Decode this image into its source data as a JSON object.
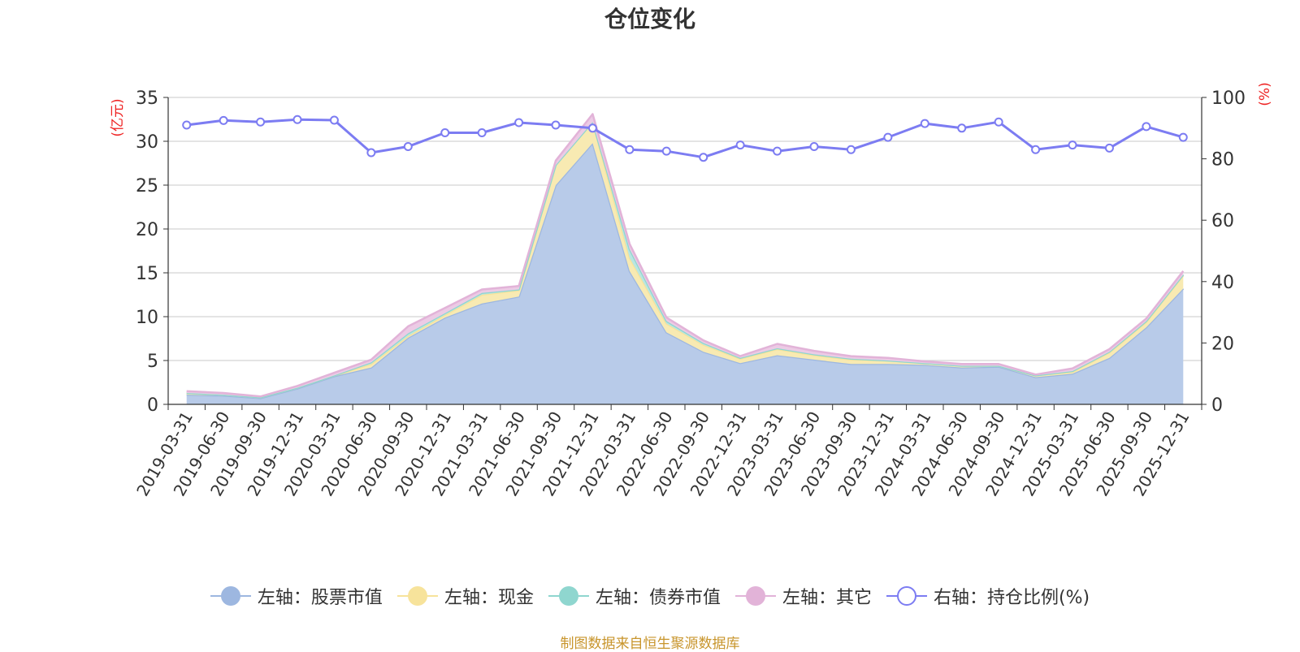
{
  "chart_data": {
    "type": "area",
    "title": "仓位变化",
    "left_axis_unit": "(亿元)",
    "right_axis_unit": "(%)",
    "left_ylim": [
      0,
      35
    ],
    "left_yticks": [
      0,
      5,
      10,
      15,
      20,
      25,
      30,
      35
    ],
    "right_ylim": [
      0,
      100
    ],
    "right_yticks": [
      0,
      20,
      40,
      60,
      80,
      100
    ],
    "categories": [
      "2019-03-31",
      "2019-06-30",
      "2019-09-30",
      "2019-12-31",
      "2020-03-31",
      "2020-06-30",
      "2020-09-30",
      "2020-12-31",
      "2021-03-31",
      "2021-06-30",
      "2021-09-30",
      "2021-12-31",
      "2022-03-31",
      "2022-06-30",
      "2022-09-30",
      "2022-12-31",
      "2023-03-31",
      "2023-06-30",
      "2023-09-30",
      "2023-12-31",
      "2024-03-31",
      "2024-06-30",
      "2024-09-30",
      "2024-12-31",
      "2025-03-31",
      "2025-06-30",
      "2025-09-30",
      "2025-12-31"
    ],
    "series": [
      {
        "name": "左轴：股票市值",
        "axis": "left",
        "stacked": true,
        "color": "#9db7e0",
        "fill": "#b8cbe9",
        "values": [
          1.1,
          1.0,
          0.7,
          1.8,
          3.2,
          4.2,
          7.6,
          9.9,
          11.5,
          12.3,
          25.0,
          29.8,
          15.2,
          8.2,
          6.0,
          4.7,
          5.6,
          5.1,
          4.6,
          4.6,
          4.5,
          4.2,
          4.3,
          3.1,
          3.5,
          5.3,
          8.8,
          13.2
        ]
      },
      {
        "name": "左轴：现金",
        "axis": "left",
        "stacked": true,
        "color": "#f7e39b",
        "fill": "#f8eab2",
        "values": [
          0.2,
          0.1,
          0.1,
          0.1,
          0.1,
          0.4,
          0.2,
          0.3,
          1.0,
          0.7,
          2.3,
          2.4,
          1.5,
          1.0,
          0.8,
          0.5,
          0.7,
          0.5,
          0.5,
          0.4,
          0.2,
          0.2,
          0.1,
          0.2,
          0.2,
          0.6,
          0.6,
          1.5
        ]
      },
      {
        "name": "左轴：债券市值",
        "axis": "left",
        "stacked": true,
        "color": "#8fd6cf",
        "fill": "#b9e6e2",
        "values": [
          0.0,
          0.0,
          0.0,
          0.0,
          0.0,
          0.2,
          0.3,
          0.2,
          0.2,
          0.1,
          0.0,
          0.0,
          1.0,
          0.3,
          0.2,
          0.1,
          0.1,
          0.1,
          0.1,
          0.0,
          0.0,
          0.0,
          0.0,
          0.0,
          0.1,
          0.1,
          0.1,
          0.1
        ]
      },
      {
        "name": "左轴：其它",
        "axis": "left",
        "stacked": true,
        "color": "#e2b3d8",
        "fill": "#eccbe5",
        "values": [
          0.2,
          0.2,
          0.1,
          0.2,
          0.3,
          0.3,
          0.8,
          0.6,
          0.4,
          0.4,
          0.5,
          0.9,
          0.6,
          0.4,
          0.3,
          0.2,
          0.5,
          0.4,
          0.3,
          0.3,
          0.2,
          0.2,
          0.2,
          0.1,
          0.3,
          0.3,
          0.3,
          0.4
        ]
      },
      {
        "name": "右轴：持仓比例(%)",
        "axis": "right",
        "stacked": false,
        "color": "#7c7cf2",
        "values": [
          91,
          92.5,
          92,
          92.8,
          92.6,
          82,
          84,
          88.5,
          88.5,
          91.8,
          91,
          90,
          83,
          82.5,
          80.5,
          84.5,
          82.5,
          84,
          83,
          87,
          91.5,
          90,
          92,
          83,
          84.5,
          83.5,
          90.5,
          87
        ]
      }
    ]
  },
  "footer": "制图数据来自恒生聚源数据库"
}
